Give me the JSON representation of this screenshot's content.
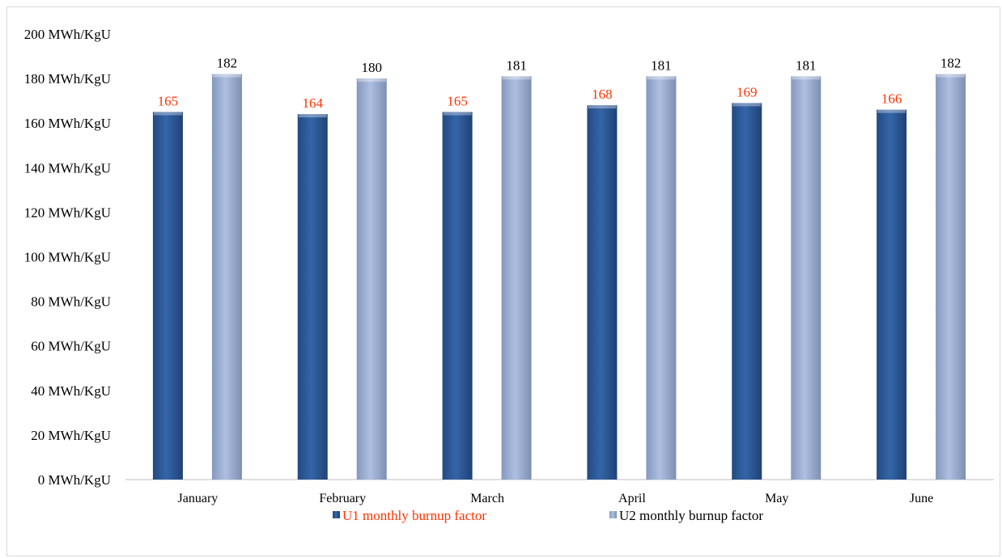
{
  "chart_data": {
    "type": "bar",
    "categories": [
      "January",
      "February",
      "March",
      "April",
      "May",
      "June"
    ],
    "series": [
      {
        "name": "U1 monthly burnup factor",
        "values": [
          165,
          164,
          165,
          168,
          169,
          166
        ],
        "color": "#2e5e9e",
        "label_color": "#ff3300"
      },
      {
        "name": "U2 monthly burnup factor",
        "values": [
          182,
          180,
          181,
          181,
          181,
          182
        ],
        "color": "#9fb3d6",
        "label_color": "#000000"
      }
    ],
    "y_ticks": [
      "0 MWh/KgU",
      "20 MWh/KgU",
      "40 MWh/KgU",
      "60 MWh/KgU",
      "80 MWh/KgU",
      "100 MWh/KgU",
      "120 MWh/KgU",
      "140 MWh/KgU",
      "160 MWh/KgU",
      "180 MWh/KgU",
      "200 MWh/KgU"
    ],
    "ylim": [
      0,
      200
    ],
    "title": "",
    "xlabel": "",
    "ylabel": "",
    "grid": false,
    "legend_position": "bottom-center"
  }
}
